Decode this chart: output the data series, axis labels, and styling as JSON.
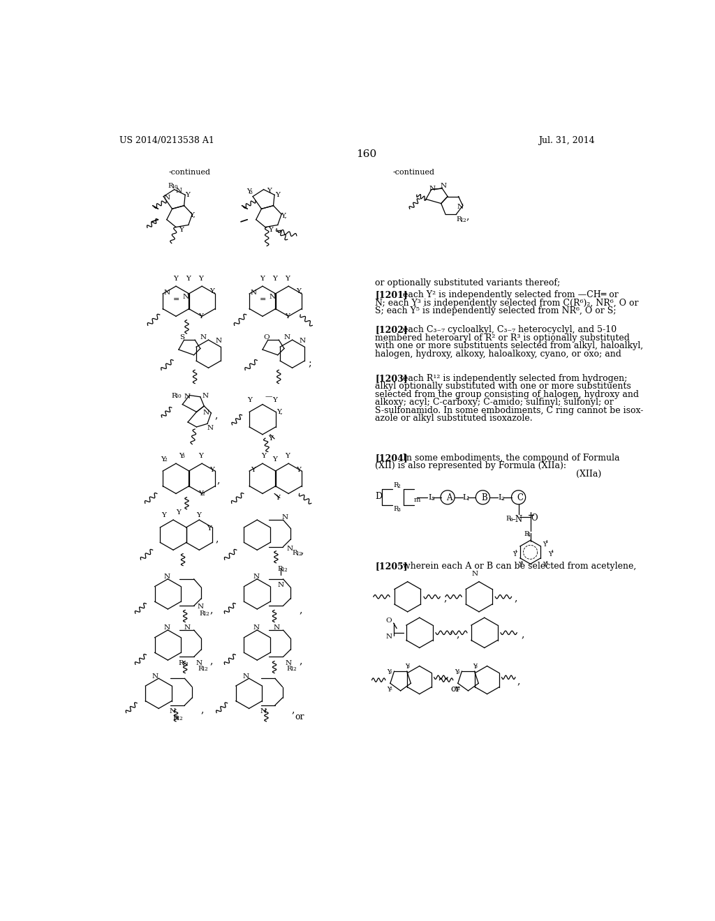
{
  "page_number": "160",
  "patent_number": "US 2014/0213538 A1",
  "date": "Jul. 31, 2014",
  "background_color": "#ffffff",
  "figsize": [
    10.24,
    13.2
  ],
  "dpi": 100,
  "continued_left": "-continued",
  "continued_right": "-continued",
  "or_optionally": "or optionally substituted variants thereof;",
  "p1201_bold": "[1201]",
  "p1201_text": "   each Y² is independently selected from —CH═ or\nN; each Y³ is independently selected from C(R⁶)₂, NR⁶, O or\nS; each Y⁵ is independently selected from NR⁶, O or S;",
  "p1202_bold": "[1202]",
  "p1202_text": "   each C₃₋₇ cycloalkyl, C₃₋₇ heterocyclyl, and 5-10\nmembered heteroaryl of R² or R³ is optionally substituted\nwith one or more substituents selected from alkyl, haloalkyl,\nhalogen, hydroxy, alkoxy, haloalkoxy, cyano, or oxo; and",
  "p1203_bold": "[1203]",
  "p1203_text": "   each R¹² is independently selected from hydrogen;\nalkyl optionally substituted with one or more substituents\nselected from the group consisting of halogen, hydroxy and\nalkoxy; acyl; C-carboxy; C-amido; sulfinyl; sulfonyl; or\nS-sulfonamido. In some embodiments, C ring cannot be isox-\nazole or alkyl substituted isoxazole.",
  "p1204_bold": "[1204]",
  "p1204_text": "   In some embodiments, the compound of Formula\n(XII) is also represented by Formula (XIIa):",
  "formula_xiia": "(XIIa)",
  "p1205_bold": "[1205]",
  "p1205_text": "   wherein each A or B can be selected from acetylene,"
}
